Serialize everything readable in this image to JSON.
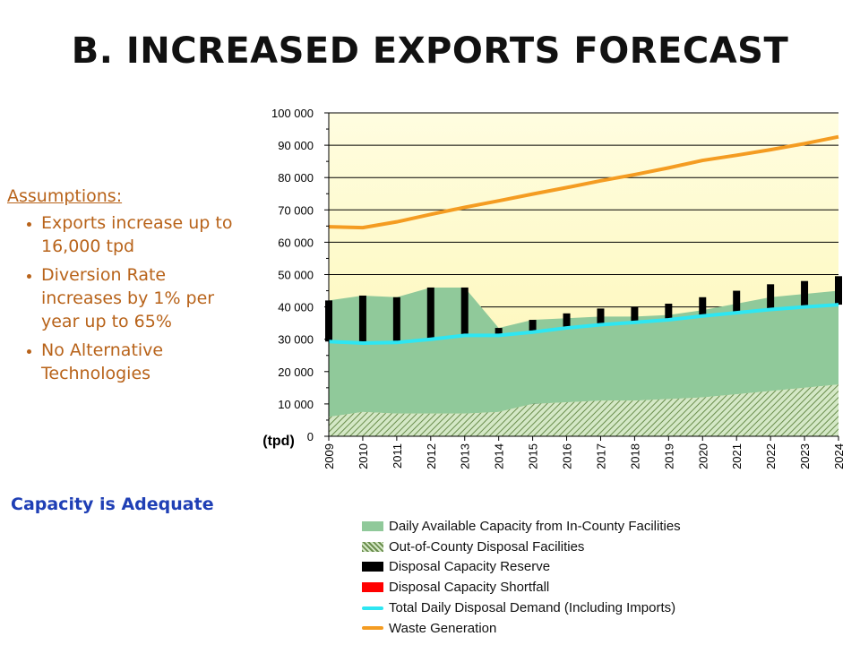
{
  "slide": {
    "title": "B.  INCREASED EXPORTS FORECAST",
    "assumptions_heading": "Assumptions:",
    "assumptions": [
      "Exports increase up to 16,000 tpd",
      "Diversion Rate increases by 1%  per year up to 65%",
      "No Alternative Technologies"
    ],
    "conclusion": "Capacity is Adequate"
  },
  "chart_data": {
    "type": "area",
    "title": "",
    "xlabel": "",
    "ylabel": "(tpd)",
    "ylim": [
      0,
      100000
    ],
    "yticks": [
      0,
      10000,
      20000,
      30000,
      40000,
      50000,
      60000,
      70000,
      80000,
      90000,
      100000
    ],
    "ytick_labels": [
      "0",
      "10 000",
      "20 000",
      "30 000",
      "40 000",
      "50 000",
      "60 000",
      "70 000",
      "80 000",
      "90 000",
      "100 000"
    ],
    "grid": true,
    "legend_position": "bottom",
    "x": [
      "2009",
      "2010",
      "2011",
      "2012",
      "2013",
      "2014",
      "2015",
      "2016",
      "2017",
      "2018",
      "2019",
      "2020",
      "2021",
      "2022",
      "2023",
      "2024"
    ],
    "series": [
      {
        "name": "Daily Available Capacity from In-County Facilities",
        "kind": "stacked-area",
        "color": "#90c99a",
        "values": [
          36000,
          36000,
          36000,
          39000,
          39000,
          26000,
          26000,
          26000,
          26000,
          26000,
          26000,
          27000,
          28000,
          29000,
          29000,
          29000
        ]
      },
      {
        "name": "Out-of-County Disposal Facilities",
        "kind": "stacked-area-hatched",
        "color": "#6b8e4e",
        "values": [
          6000,
          7500,
          7000,
          7000,
          7000,
          7500,
          10000,
          10500,
          11000,
          11000,
          11500,
          12000,
          13000,
          14000,
          15000,
          16000
        ]
      },
      {
        "name": "Disposal Capacity Reserve",
        "kind": "bar",
        "color": "#000000",
        "values": [
          12700,
          14700,
          14000,
          16000,
          14800,
          2300,
          3800,
          4500,
          5000,
          4800,
          5000,
          5800,
          6800,
          7800,
          8000,
          8800
        ]
      },
      {
        "name": "Disposal Capacity Shortfall",
        "kind": "bar",
        "color": "#ff0000",
        "values": [
          0,
          0,
          0,
          0,
          0,
          0,
          0,
          0,
          0,
          0,
          0,
          0,
          0,
          0,
          0,
          0
        ]
      },
      {
        "name": "Total Daily Disposal Demand (Including Imports)",
        "kind": "line",
        "color": "#2ee6f2",
        "values": [
          29300,
          28800,
          29000,
          30000,
          31200,
          31200,
          32200,
          33500,
          34500,
          35200,
          36000,
          37200,
          38200,
          39200,
          40000,
          40700
        ]
      },
      {
        "name": "Waste Generation",
        "kind": "line",
        "color": "#f49c22",
        "values": [
          64800,
          64500,
          66300,
          68600,
          70800,
          72800,
          74900,
          76900,
          79000,
          80900,
          83000,
          85300,
          86900,
          88600,
          90500,
          92600
        ]
      }
    ]
  }
}
